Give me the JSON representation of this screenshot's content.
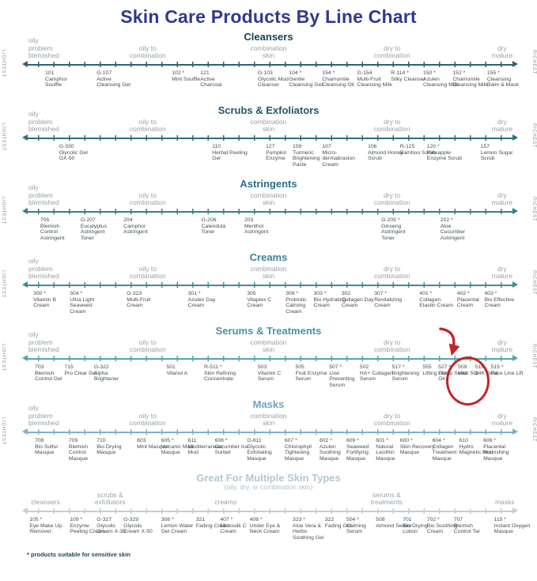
{
  "title": "Skin Care Products By Line Chart",
  "footnote": "* products suitable for sensitive skin",
  "side_labels": {
    "left": "LIGHTEST",
    "right": "RICHEST"
  },
  "colors": {
    "title": "#2f3a8c",
    "category_text": "#9aa1a6",
    "product_text": "#454e54",
    "side_label": "#8d9296",
    "footnote": "#1c4554",
    "annotation": "#c42423",
    "subtitle": "#b3bfc8"
  },
  "standard_categories": [
    {
      "label": "oily\nproblem\nblemished",
      "x": 5.3,
      "align": "left"
    },
    {
      "label": "oily to\ncombination",
      "x": 27.5,
      "align": "center"
    },
    {
      "label": "combination\nskin",
      "x": 50,
      "align": "center"
    },
    {
      "label": "dry to\ncombination",
      "x": 73,
      "align": "center"
    },
    {
      "label": "dry\nmature",
      "x": 93.5,
      "align": "center"
    }
  ],
  "rows": [
    {
      "title": "Cleansers",
      "header_color": "#193f4e",
      "axis_color": "#2e6273",
      "categories": "standard",
      "side_labels": true,
      "products": [
        {
          "code": "101",
          "star": false,
          "name": "Camphor Souffle",
          "x": 8.4
        },
        {
          "code": "G-107",
          "star": false,
          "name": "Active Cleansing Gel",
          "x": 18
        },
        {
          "code": "102",
          "star": true,
          "name": "Mint Souffle",
          "x": 32
        },
        {
          "code": "121",
          "star": false,
          "name": "Active Charcoal",
          "x": 37.3
        },
        {
          "code": "G-103",
          "star": false,
          "name": "Glycolic Mud Cleanser",
          "x": 48
        },
        {
          "code": "104",
          "star": true,
          "name": "Gentle Cleansing Gel",
          "x": 53.8
        },
        {
          "code": "154",
          "star": true,
          "name": "Chamomile Cleansing Oil",
          "x": 60
        },
        {
          "code": "G-154",
          "star": false,
          "name": "Multi-Fruit Cleansing Milk",
          "x": 66.5
        },
        {
          "code": "R-114",
          "star": true,
          "name": "Silky Cleanser",
          "x": 72.8
        },
        {
          "code": "150",
          "star": true,
          "name": "Azulen Cleansing Milk",
          "x": 78.8
        },
        {
          "code": "152",
          "star": true,
          "name": "Chamomile Cleansing Milk",
          "x": 84.3
        },
        {
          "code": "155",
          "star": true,
          "name": "Cleansing Balm & Mask",
          "x": 90.7
        }
      ]
    },
    {
      "title": "Scrubs & Exfoliators",
      "header_color": "#1f5866",
      "axis_color": "#2e6e7e",
      "categories": "standard",
      "side_labels": true,
      "products": [
        {
          "code": "G-330",
          "star": false,
          "name": "Glycolic Gel GX-50",
          "x": 11
        },
        {
          "code": "110",
          "star": false,
          "name": "Herbal Peeling Gel",
          "x": 39.5
        },
        {
          "code": "127",
          "star": false,
          "name": "Pumpkin Enzyme",
          "x": 49.5
        },
        {
          "code": "159",
          "star": false,
          "name": "Turmeric Brightening Paste",
          "x": 54.5
        },
        {
          "code": "107",
          "star": false,
          "name": "Micro-dermabrasion Cream",
          "x": 60
        },
        {
          "code": "106",
          "star": false,
          "name": "Almond Honey Scrub",
          "x": 68.5
        },
        {
          "code": "R-125",
          "star": false,
          "name": "Bamboo Scrub",
          "x": 74.5
        },
        {
          "code": "120",
          "star": true,
          "name": "Pineapple Enzyme Scrub",
          "x": 79.5
        },
        {
          "code": "157",
          "star": false,
          "name": "Lemon Sugar Scrub",
          "x": 89.5
        }
      ]
    },
    {
      "title": "Astringents",
      "header_color": "#2b7183",
      "axis_color": "#357e8e",
      "categories": "standard",
      "side_labels": true,
      "products": [
        {
          "code": "705",
          "star": false,
          "name": "Blemish Control Astringent",
          "x": 7.5
        },
        {
          "code": "G-207",
          "star": false,
          "name": "Eucalyptus Astringent Toner",
          "x": 15
        },
        {
          "code": "204",
          "star": false,
          "name": "Camphor Astringent",
          "x": 23
        },
        {
          "code": "G-206",
          "star": false,
          "name": "Calendula Toner",
          "x": 37.5
        },
        {
          "code": "203",
          "star": false,
          "name": "Menthol Astringent",
          "x": 45.5
        },
        {
          "code": "G-205",
          "star": true,
          "name": "Ginseng Astringent Toner",
          "x": 71
        },
        {
          "code": "202",
          "star": true,
          "name": "Aloe Cucumber Astringent",
          "x": 82
        }
      ]
    },
    {
      "title": "Creams",
      "header_color": "#388495",
      "axis_color": "#3f8a9b",
      "categories": "standard",
      "side_labels": true,
      "products": [
        {
          "code": "300",
          "star": true,
          "name": "Vitamin B Cream",
          "x": 6.2
        },
        {
          "code": "304",
          "star": true,
          "name": "Ultra Light Seaweed Cream",
          "x": 13
        },
        {
          "code": "G-323",
          "star": false,
          "name": "Multi-Fruit Cream",
          "x": 23.6
        },
        {
          "code": "301",
          "star": true,
          "name": "Azulen Day Cream",
          "x": 35
        },
        {
          "code": "305",
          "star": false,
          "name": "Vitaplex C Cream",
          "x": 46
        },
        {
          "code": "309",
          "star": true,
          "name": "Probiotic Calming Cream",
          "x": 53.2
        },
        {
          "code": "303",
          "star": true,
          "name": "Bio Hydrating Cream",
          "x": 58.4
        },
        {
          "code": "302",
          "star": false,
          "name": "Collagen Day Cream",
          "x": 63.6
        },
        {
          "code": "307",
          "star": true,
          "name": "Revitalizing Cream",
          "x": 69.7
        },
        {
          "code": "401",
          "star": true,
          "name": "Collagen Elastin Cream",
          "x": 78.1
        },
        {
          "code": "402",
          "star": true,
          "name": "Placental Cream",
          "x": 85.1
        },
        {
          "code": "403",
          "star": true,
          "name": "Bio Effective Cream",
          "x": 90.2
        }
      ]
    },
    {
      "title": "Serums & Treatments",
      "header_color": "#4b93a4",
      "axis_color": "#58a0b4",
      "categories": "standard",
      "side_labels": true,
      "products": [
        {
          "code": "703",
          "star": false,
          "name": "Blemish Control Gel",
          "x": 6.5
        },
        {
          "code": "715",
          "star": false,
          "name": "Pro Clear Gel",
          "x": 12
        },
        {
          "code": "G-322",
          "star": false,
          "name": "Alpha Brightener",
          "x": 17.5
        },
        {
          "code": "501",
          "star": false,
          "name": "Vitanol A",
          "x": 31
        },
        {
          "code": "R-511",
          "star": true,
          "name": "Skin Refining Concentrate",
          "x": 38
        },
        {
          "code": "503",
          "star": false,
          "name": "Vitamin C Serum",
          "x": 48
        },
        {
          "code": "505",
          "star": false,
          "name": "Fruit Enzyme Serum",
          "x": 55
        },
        {
          "code": "507",
          "star": true,
          "name": "Line Preventing Serum",
          "x": 61.3
        },
        {
          "code": "502",
          "star": false,
          "name": "HA+ Collagen Serum",
          "x": 67
        },
        {
          "code": "517",
          "star": true,
          "name": "Brightening Serum",
          "x": 73
        },
        {
          "code": "555",
          "star": false,
          "name": "Lifting Elixir",
          "x": 78.7
        },
        {
          "code": "527",
          "star": true,
          "name": "Hemp Seed Oil",
          "x": 81.6
        },
        {
          "code": "509",
          "star": false,
          "name": "Vital Silk",
          "x": 85.3
        },
        {
          "code": "510",
          "star": false,
          "name": "24K Gold",
          "x": 88.5
        },
        {
          "code": "515",
          "star": true,
          "name": "Face Line Lift",
          "x": 91.4
        }
      ]
    },
    {
      "title": "Masks",
      "header_color": "#73a3c3",
      "axis_color": "#7eb0c9",
      "categories": "standard",
      "side_labels": true,
      "products": [
        {
          "code": "708",
          "star": false,
          "name": "Bio Sulfur Masque",
          "x": 6.5
        },
        {
          "code": "709",
          "star": false,
          "name": "Blemish Control Masque",
          "x": 12.8
        },
        {
          "code": "710",
          "star": false,
          "name": "Bio Drying Masque",
          "x": 18
        },
        {
          "code": "603",
          "star": false,
          "name": "Mint Masque",
          "x": 25.5
        },
        {
          "code": "605",
          "star": true,
          "name": "Volcanic Mud Masque",
          "x": 30
        },
        {
          "code": "611",
          "star": false,
          "name": "Mediterranean Mud",
          "x": 35
        },
        {
          "code": "608",
          "star": true,
          "name": "Cucumber Ice Sorbet",
          "x": 40
        },
        {
          "code": "G-611",
          "star": false,
          "name": "Glycolic Exfoliating Masque",
          "x": 46
        },
        {
          "code": "607",
          "star": true,
          "name": "Chlorophyll Tightening Masque",
          "x": 53
        },
        {
          "code": "602",
          "star": true,
          "name": "Azulen Soothing Masque",
          "x": 59.5
        },
        {
          "code": "609",
          "star": true,
          "name": "Seaweed Fortifying Masque",
          "x": 64.5
        },
        {
          "code": "601",
          "star": true,
          "name": "Natural Lecithin Masque",
          "x": 70
        },
        {
          "code": "600",
          "star": true,
          "name": "Skin Recovery Masque",
          "x": 74.5
        },
        {
          "code": "604",
          "star": true,
          "name": "Collagen Treatment Masque",
          "x": 80.5
        },
        {
          "code": "610",
          "star": false,
          "name": "Hydro Magnetic Mud",
          "x": 85.5
        },
        {
          "code": "606",
          "star": true,
          "name": "Placental Nourishing Masque",
          "x": 90
        }
      ]
    },
    {
      "title": "Great For Multiple Skin Types",
      "subtitle": "(oily, dry, or combination skin)",
      "header_color": "#b4c7d3",
      "axis_color": "#c3cdd4",
      "side_labels": false,
      "categories": [
        {
          "label": "cleansers",
          "x": 8.5,
          "align": "center"
        },
        {
          "label": "scrubs &\nexfoliators",
          "x": 20.5,
          "align": "center"
        },
        {
          "label": "creams",
          "x": 42,
          "align": "center"
        },
        {
          "label": "serums &\ntreatments",
          "x": 72,
          "align": "center"
        },
        {
          "label": "masks",
          "x": 94,
          "align": "center"
        }
      ],
      "products": [
        {
          "code": "105",
          "star": true,
          "name": "Eye Make Up Remover",
          "x": 5.5
        },
        {
          "code": "109",
          "star": true,
          "name": "Enzyme Peeling Cream",
          "x": 13
        },
        {
          "code": "G-327",
          "star": false,
          "name": "Glycolic Cream X-30",
          "x": 18
        },
        {
          "code": "G-329",
          "star": false,
          "name": "Glycolic Cream X-50",
          "x": 23
        },
        {
          "code": "308",
          "star": true,
          "name": "Lemon Water Gel Cream",
          "x": 30
        },
        {
          "code": "321",
          "star": false,
          "name": "Fading Cream",
          "x": 36.5
        },
        {
          "code": "407",
          "star": true,
          "name": "Microsilk C Cream",
          "x": 41
        },
        {
          "code": "408",
          "star": true,
          "name": "Under Eye & Neck Cream",
          "x": 46.5
        },
        {
          "code": "323",
          "star": true,
          "name": "Aloe Vera & Herbs Soothing Gel",
          "x": 54.5
        },
        {
          "code": "322",
          "star": false,
          "name": "Fading Gel",
          "x": 60.5
        },
        {
          "code": "504",
          "star": true,
          "name": "Calming Serum",
          "x": 64.5
        },
        {
          "code": "508",
          "star": false,
          "name": "Almond Serum",
          "x": 70
        },
        {
          "code": "701",
          "star": false,
          "name": "Bio Drying Lotion",
          "x": 75
        },
        {
          "code": "702",
          "star": true,
          "name": "Bio Soothing Cream",
          "x": 79.5
        },
        {
          "code": "707",
          "star": false,
          "name": "Blemish Control Tar",
          "x": 84.5
        },
        {
          "code": "115",
          "star": true,
          "name": "Instant Oxygen Masque",
          "x": 92
        }
      ]
    }
  ],
  "annotation": {
    "row_title": "Serums & Treatments",
    "circled_product": "509 Vital Silk",
    "color": "#c42423"
  }
}
